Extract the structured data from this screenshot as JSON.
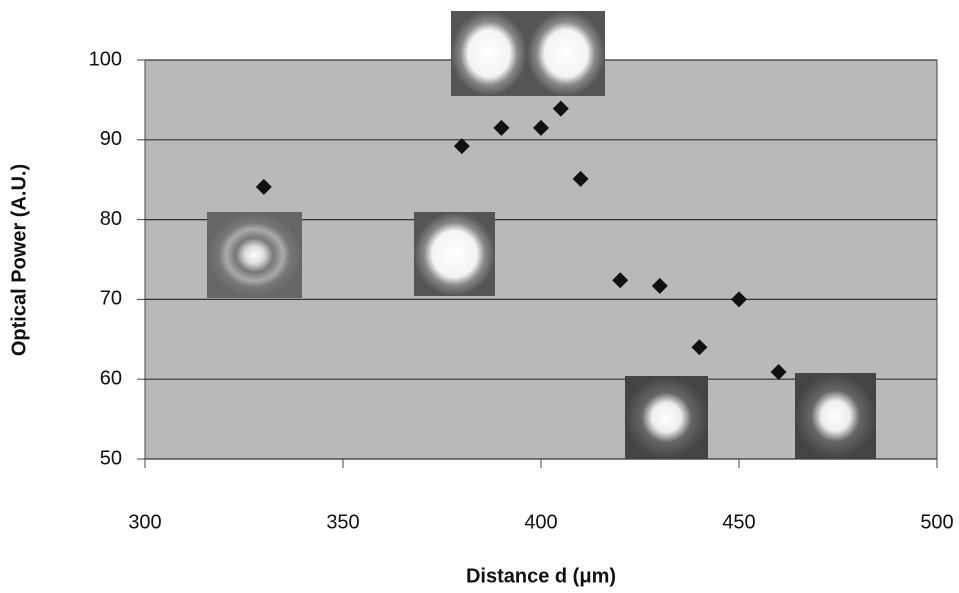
{
  "chart_data": {
    "type": "scatter",
    "x_label": "Distance d (μm)",
    "y_label": "Optical Power (A.U.)",
    "x": [
      330,
      380,
      390,
      400,
      405,
      410,
      420,
      430,
      440,
      450,
      460
    ],
    "values": [
      84.1,
      89.2,
      91.5,
      91.5,
      93.9,
      85.1,
      72.4,
      71.7,
      64.0,
      70.0,
      60.9
    ],
    "xlim": [
      300,
      500
    ],
    "xticks": [
      300,
      350,
      400,
      450,
      500
    ],
    "ylim": [
      50,
      100
    ],
    "yticks": [
      50,
      60,
      70,
      80,
      90,
      100
    ],
    "color": "#111111",
    "marker": "diamond",
    "grid": true
  }
}
